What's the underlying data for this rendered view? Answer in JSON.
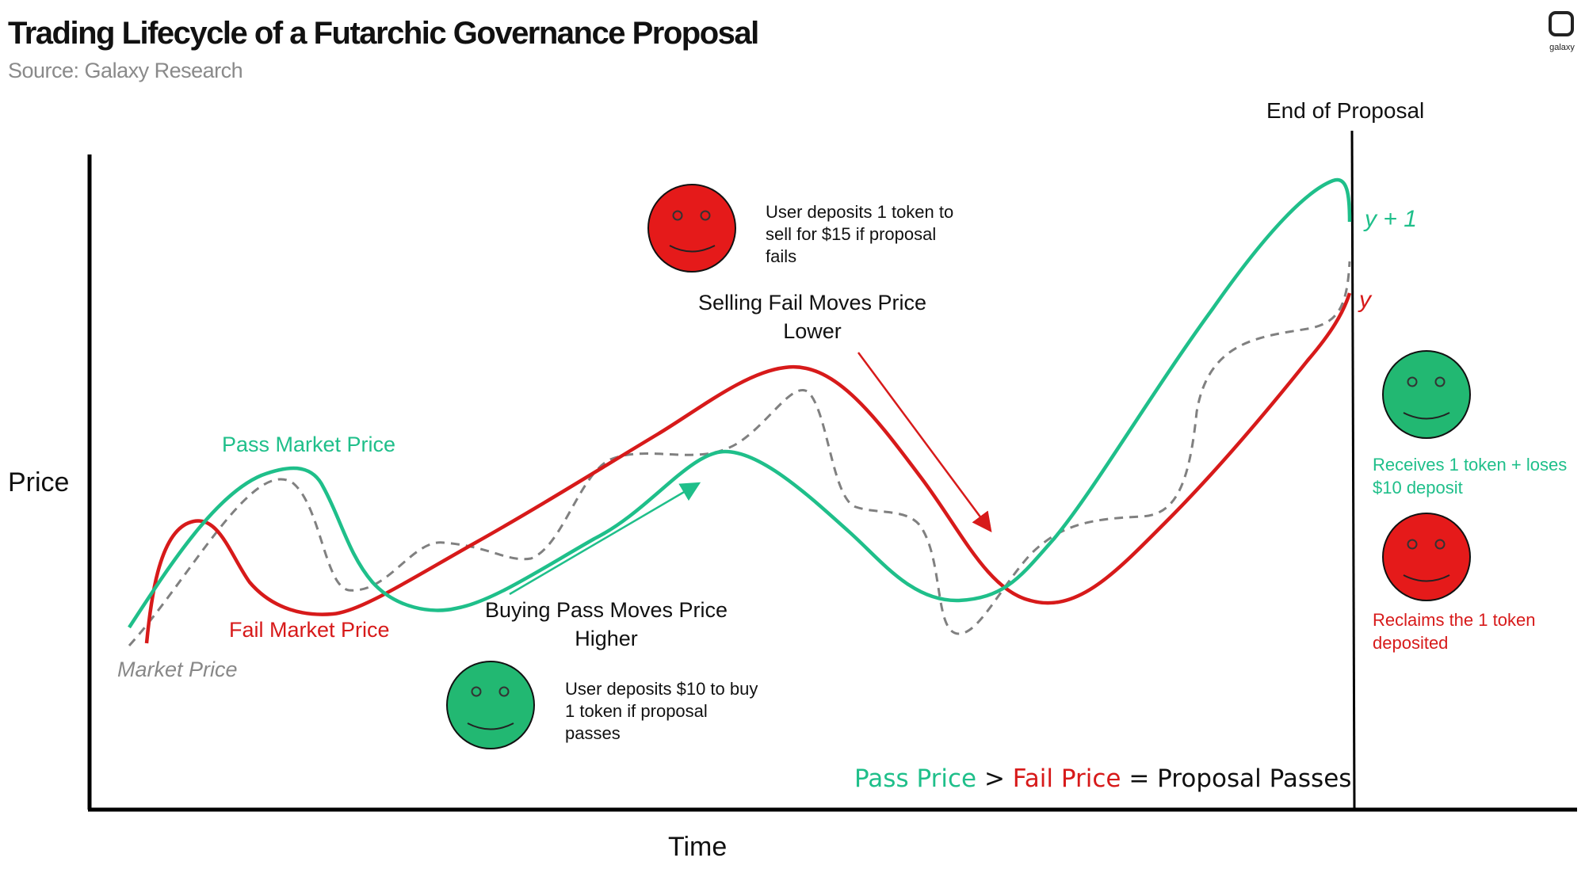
{
  "header": {
    "title": "Trading Lifecycle of a Futarchic Governance Proposal",
    "source": "Source: Galaxy Research"
  },
  "logo": {
    "text": "galaxy"
  },
  "axes": {
    "y_label": "Price",
    "x_label": "Time"
  },
  "end_marker": {
    "label": "End of Proposal"
  },
  "series_labels": {
    "pass": "Pass Market Price",
    "fail": "Fail Market Price",
    "market": "Market Price"
  },
  "end_values": {
    "pass": "y + 1",
    "fail": "y"
  },
  "annotations": {
    "selling_fail": [
      "Selling Fail Moves Price",
      "Lower"
    ],
    "buying_pass": [
      "Buying Pass Moves Price",
      "Higher"
    ]
  },
  "notes": {
    "fail_deposit": [
      "User deposits 1 token to",
      "sell for $15 if proposal",
      "fails"
    ],
    "pass_deposit": [
      "User deposits $10 to buy",
      "1 token if proposal",
      "passes"
    ]
  },
  "outcomes": {
    "pass_user": [
      "Receives 1 token + loses",
      "$10 deposit"
    ],
    "fail_user": [
      "Reclaims the 1 token",
      "deposited"
    ]
  },
  "rule": {
    "pass_price": "Pass Price",
    "gt": ">",
    "fail_price": "Fail Price",
    "result": "= Proposal Passes"
  },
  "colors": {
    "pass": "#1fbf8a",
    "fail": "#d71a1a",
    "market": "#808080",
    "happy_face": "#22b872",
    "sad_face": "#e51a1a"
  }
}
